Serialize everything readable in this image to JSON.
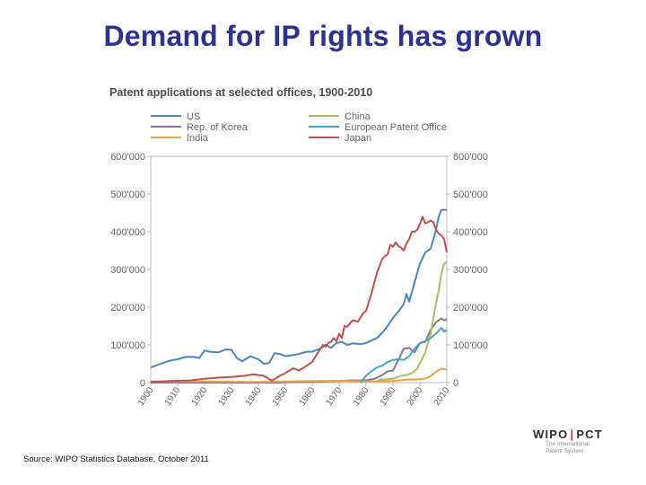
{
  "slide": {
    "title": "Demand for IP rights has grown",
    "source": "Source: WIPO Statistics Database, October 2011",
    "logo": {
      "left": "WIPO",
      "right": "PCT",
      "sub": "The International Patent System"
    }
  },
  "colors": {
    "title": "#2e3192",
    "US": "#4a86bd",
    "Rep. of Korea": "#8b6fa3",
    "India": "#e8a33d",
    "China": "#a5bf5c",
    "European Patent Office": "#45a7b8",
    "Japan": "#c0504d",
    "axis": "#bbbbbb",
    "tick_text": "#666666"
  },
  "chart_data": {
    "type": "line",
    "title": "Patent applications at selected offices, 1900-2010",
    "xlim": [
      1900,
      2010
    ],
    "ylim": [
      0,
      600000
    ],
    "grid": false,
    "legend": "top",
    "x_ticks": [
      "1900",
      "1910",
      "1920",
      "1930",
      "1940",
      "1950",
      "1960",
      "1970",
      "1980",
      "1990",
      "2000",
      "2010"
    ],
    "y_ticks_left": [
      "0",
      "100'000",
      "200'000",
      "300'000",
      "400'000",
      "500'000",
      "600'000"
    ],
    "y_ticks_right": [
      "0",
      "100'000",
      "200'000",
      "300'000",
      "400'000",
      "500'000",
      "600'000"
    ],
    "series": [
      {
        "name": "US",
        "color": "#4a86bd",
        "points": [
          [
            1900,
            40000
          ],
          [
            1903,
            48000
          ],
          [
            1907,
            58000
          ],
          [
            1910,
            62000
          ],
          [
            1913,
            68000
          ],
          [
            1916,
            68000
          ],
          [
            1918,
            65000
          ],
          [
            1920,
            85000
          ],
          [
            1922,
            82000
          ],
          [
            1925,
            80000
          ],
          [
            1928,
            88000
          ],
          [
            1930,
            87000
          ],
          [
            1932,
            65000
          ],
          [
            1934,
            57000
          ],
          [
            1937,
            70000
          ],
          [
            1940,
            62000
          ],
          [
            1942,
            50000
          ],
          [
            1944,
            52000
          ],
          [
            1946,
            78000
          ],
          [
            1948,
            76000
          ],
          [
            1950,
            70000
          ],
          [
            1952,
            72000
          ],
          [
            1955,
            76000
          ],
          [
            1958,
            82000
          ],
          [
            1960,
            82000
          ],
          [
            1963,
            90000
          ],
          [
            1965,
            100000
          ],
          [
            1967,
            92000
          ],
          [
            1969,
            105000
          ],
          [
            1971,
            108000
          ],
          [
            1973,
            100000
          ],
          [
            1975,
            104000
          ],
          [
            1978,
            102000
          ],
          [
            1980,
            105000
          ],
          [
            1982,
            112000
          ],
          [
            1984,
            118000
          ],
          [
            1986,
            132000
          ],
          [
            1988,
            150000
          ],
          [
            1990,
            172000
          ],
          [
            1992,
            188000
          ],
          [
            1994,
            208000
          ],
          [
            1995,
            235000
          ],
          [
            1996,
            215000
          ],
          [
            1997,
            240000
          ],
          [
            1998,
            265000
          ],
          [
            2000,
            315000
          ],
          [
            2002,
            345000
          ],
          [
            2004,
            355000
          ],
          [
            2006,
            405000
          ],
          [
            2007,
            440000
          ],
          [
            2008,
            458000
          ],
          [
            2010,
            458000
          ]
        ]
      },
      {
        "name": "Rep. of Korea",
        "color": "#8b6fa3",
        "points": [
          [
            1900,
            0
          ],
          [
            1948,
            0
          ],
          [
            1950,
            1000
          ],
          [
            1960,
            2000
          ],
          [
            1970,
            4000
          ],
          [
            1975,
            6000
          ],
          [
            1980,
            6000
          ],
          [
            1983,
            10000
          ],
          [
            1986,
            20000
          ],
          [
            1988,
            30000
          ],
          [
            1990,
            32000
          ],
          [
            1992,
            60000
          ],
          [
            1994,
            90000
          ],
          [
            1996,
            92000
          ],
          [
            1998,
            80000
          ],
          [
            2000,
            105000
          ],
          [
            2002,
            108000
          ],
          [
            2004,
            140000
          ],
          [
            2006,
            160000
          ],
          [
            2008,
            170000
          ],
          [
            2009,
            165000
          ],
          [
            2010,
            168000
          ]
        ]
      },
      {
        "name": "India",
        "color": "#e8a33d",
        "points": [
          [
            1900,
            3000
          ],
          [
            1920,
            3000
          ],
          [
            1940,
            2000
          ],
          [
            1950,
            3000
          ],
          [
            1960,
            4000
          ],
          [
            1970,
            4500
          ],
          [
            1980,
            3000
          ],
          [
            1990,
            4000
          ],
          [
            1995,
            8000
          ],
          [
            2000,
            9000
          ],
          [
            2002,
            11000
          ],
          [
            2004,
            17000
          ],
          [
            2006,
            29000
          ],
          [
            2008,
            37000
          ],
          [
            2010,
            34000
          ]
        ]
      },
      {
        "name": "China",
        "color": "#a5bf5c",
        "points": [
          [
            1984,
            0
          ],
          [
            1985,
            8000
          ],
          [
            1988,
            9000
          ],
          [
            1990,
            10000
          ],
          [
            1993,
            18000
          ],
          [
            1995,
            20000
          ],
          [
            1997,
            25000
          ],
          [
            1999,
            37000
          ],
          [
            2000,
            52000
          ],
          [
            2002,
            80000
          ],
          [
            2004,
            130000
          ],
          [
            2005,
            170000
          ],
          [
            2006,
            210000
          ],
          [
            2007,
            245000
          ],
          [
            2008,
            290000
          ],
          [
            2009,
            315000
          ],
          [
            2010,
            320000
          ]
        ]
      },
      {
        "name": "European Patent Office",
        "color": "#45a7b8",
        "points": [
          [
            1978,
            0
          ],
          [
            1980,
            18000
          ],
          [
            1982,
            30000
          ],
          [
            1984,
            40000
          ],
          [
            1986,
            45000
          ],
          [
            1988,
            55000
          ],
          [
            1990,
            60000
          ],
          [
            1992,
            62000
          ],
          [
            1994,
            60000
          ],
          [
            1996,
            70000
          ],
          [
            1998,
            90000
          ],
          [
            2000,
            105000
          ],
          [
            2002,
            110000
          ],
          [
            2004,
            118000
          ],
          [
            2006,
            130000
          ],
          [
            2008,
            145000
          ],
          [
            2009,
            135000
          ],
          [
            2010,
            140000
          ]
        ]
      },
      {
        "name": "Japan",
        "color": "#c0504d",
        "points": [
          [
            1900,
            2000
          ],
          [
            1910,
            5000
          ],
          [
            1915,
            6000
          ],
          [
            1920,
            10000
          ],
          [
            1925,
            13000
          ],
          [
            1930,
            15000
          ],
          [
            1935,
            18000
          ],
          [
            1938,
            22000
          ],
          [
            1940,
            20000
          ],
          [
            1942,
            18000
          ],
          [
            1945,
            5000
          ],
          [
            1948,
            18000
          ],
          [
            1950,
            25000
          ],
          [
            1953,
            38000
          ],
          [
            1955,
            32000
          ],
          [
            1958,
            45000
          ],
          [
            1960,
            55000
          ],
          [
            1962,
            78000
          ],
          [
            1964,
            100000
          ],
          [
            1965,
            95000
          ],
          [
            1966,
            105000
          ],
          [
            1967,
            108000
          ],
          [
            1968,
            118000
          ],
          [
            1969,
            110000
          ],
          [
            1970,
            130000
          ],
          [
            1971,
            118000
          ],
          [
            1972,
            150000
          ],
          [
            1973,
            148000
          ],
          [
            1975,
            165000
          ],
          [
            1977,
            162000
          ],
          [
            1979,
            185000
          ],
          [
            1980,
            190000
          ],
          [
            1982,
            237000
          ],
          [
            1984,
            290000
          ],
          [
            1986,
            328000
          ],
          [
            1987,
            335000
          ],
          [
            1988,
            340000
          ],
          [
            1989,
            365000
          ],
          [
            1990,
            360000
          ],
          [
            1991,
            372000
          ],
          [
            1992,
            362000
          ],
          [
            1993,
            358000
          ],
          [
            1994,
            350000
          ],
          [
            1995,
            368000
          ],
          [
            1996,
            380000
          ],
          [
            1997,
            400000
          ],
          [
            1998,
            400000
          ],
          [
            1999,
            405000
          ],
          [
            2000,
            420000
          ],
          [
            2001,
            440000
          ],
          [
            2002,
            422000
          ],
          [
            2003,
            425000
          ],
          [
            2004,
            430000
          ],
          [
            2005,
            425000
          ],
          [
            2006,
            405000
          ],
          [
            2007,
            395000
          ],
          [
            2008,
            390000
          ],
          [
            2009,
            380000
          ],
          [
            2010,
            345000
          ]
        ]
      }
    ]
  }
}
